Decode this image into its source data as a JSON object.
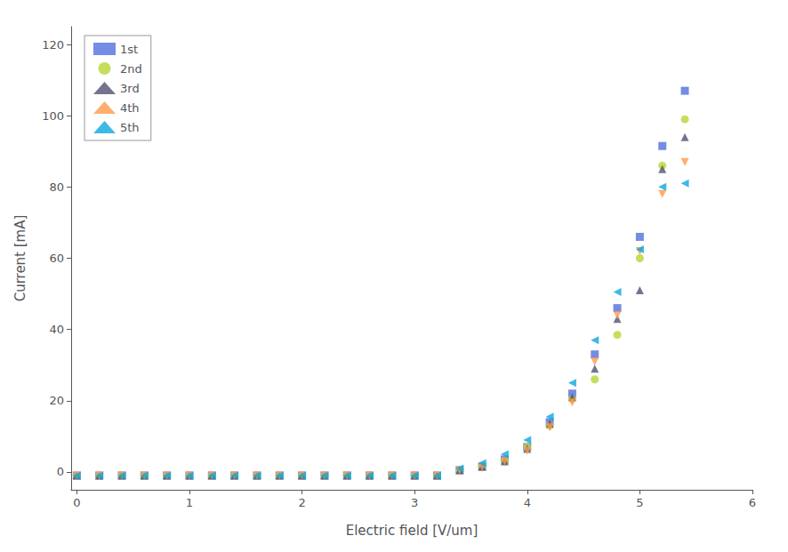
{
  "chart_data": {
    "type": "scatter",
    "xlabel": "Electric field [V/um]",
    "ylabel": "Current [mA]",
    "xlim": [
      -0.05,
      6.0
    ],
    "ylim": [
      -5,
      125
    ],
    "xticks": [
      0,
      1,
      2,
      3,
      4,
      5,
      6
    ],
    "yticks": [
      0,
      20,
      40,
      60,
      80,
      100,
      120
    ],
    "grid": false,
    "legend": "upper left",
    "series": [
      {
        "name": "1st",
        "marker": "square",
        "x": [
          0.0,
          0.2,
          0.4,
          0.6,
          0.8,
          1.0,
          1.2,
          1.4,
          1.6,
          1.8,
          2.0,
          2.2,
          2.4,
          2.6,
          2.8,
          3.0,
          3.2,
          3.4,
          3.6,
          3.8,
          4.0,
          4.2,
          4.4,
          4.6,
          4.8,
          5.0,
          5.2,
          5.4
        ],
        "values": [
          -1,
          -1,
          -1,
          -1,
          -1,
          -1,
          -1,
          -1,
          -1,
          -1,
          -1,
          -1,
          -1,
          -1,
          -1,
          -1,
          -1,
          0.5,
          1.5,
          3.5,
          7.0,
          14.0,
          22.0,
          33.0,
          46.0,
          66.0,
          91.5,
          107.0
        ]
      },
      {
        "name": "2nd",
        "marker": "circle",
        "x": [
          0.0,
          0.2,
          0.4,
          0.6,
          0.8,
          1.0,
          1.2,
          1.4,
          1.6,
          1.8,
          2.0,
          2.2,
          2.4,
          2.6,
          2.8,
          3.0,
          3.2,
          3.4,
          3.6,
          3.8,
          4.0,
          4.2,
          4.4,
          4.6,
          4.8,
          5.0,
          5.2,
          5.4
        ],
        "values": [
          -1,
          -1,
          -1,
          -1,
          -1,
          -1,
          -1,
          -1,
          -1,
          -1,
          -1,
          -1,
          -1,
          -1,
          -1,
          -1,
          -1,
          0.5,
          1.5,
          3.0,
          7.0,
          13.0,
          20.5,
          26.0,
          38.5,
          60.0,
          86.0,
          99.0
        ]
      },
      {
        "name": "3rd",
        "marker": "triangle-up",
        "x": [
          0.0,
          0.2,
          0.4,
          0.6,
          0.8,
          1.0,
          1.2,
          1.4,
          1.6,
          1.8,
          2.0,
          2.2,
          2.4,
          2.6,
          2.8,
          3.0,
          3.2,
          3.4,
          3.6,
          3.8,
          4.0,
          4.2,
          4.4,
          4.6,
          4.8,
          5.0,
          5.2,
          5.4
        ],
        "values": [
          -1,
          -1,
          -1,
          -1,
          -1,
          -1,
          -1,
          -1,
          -1,
          -1,
          -1,
          -1,
          -1,
          -1,
          -1,
          -1,
          -1,
          0.5,
          1.5,
          3.0,
          6.5,
          13.5,
          21.0,
          29.0,
          43.0,
          51.0,
          85.0,
          94.0
        ]
      },
      {
        "name": "4th",
        "marker": "triangle-down",
        "x": [
          0.0,
          0.2,
          0.4,
          0.6,
          0.8,
          1.0,
          1.2,
          1.4,
          1.6,
          1.8,
          2.0,
          2.2,
          2.4,
          2.6,
          2.8,
          3.0,
          3.2,
          3.4,
          3.6,
          3.8,
          4.0,
          4.2,
          4.4,
          4.6,
          4.8,
          5.0,
          5.2,
          5.4
        ],
        "values": [
          -1,
          -1,
          -1,
          -1,
          -1,
          -1,
          -1,
          -1,
          -1,
          -1,
          -1,
          -1,
          -1,
          -1,
          -1,
          -1,
          -1,
          0.5,
          1.5,
          3.0,
          6.0,
          12.5,
          19.5,
          31.0,
          44.0,
          62.0,
          78.0,
          87.0
        ]
      },
      {
        "name": "5th",
        "marker": "triangle-left",
        "x": [
          0.0,
          0.2,
          0.4,
          0.6,
          0.8,
          1.0,
          1.2,
          1.4,
          1.6,
          1.8,
          2.0,
          2.2,
          2.4,
          2.6,
          2.8,
          3.0,
          3.2,
          3.4,
          3.6,
          3.8,
          4.0,
          4.2,
          4.4,
          4.6,
          4.8,
          5.0,
          5.2,
          5.4
        ],
        "values": [
          -1,
          -1,
          -1,
          -1,
          -1,
          -1,
          -1,
          -1,
          -1,
          -1,
          -1,
          -1,
          -1,
          -1,
          -1,
          -1,
          -1,
          1.0,
          2.5,
          5.0,
          9.0,
          15.5,
          25.0,
          37.0,
          50.5,
          62.5,
          80.0,
          81.0
        ]
      }
    ]
  }
}
